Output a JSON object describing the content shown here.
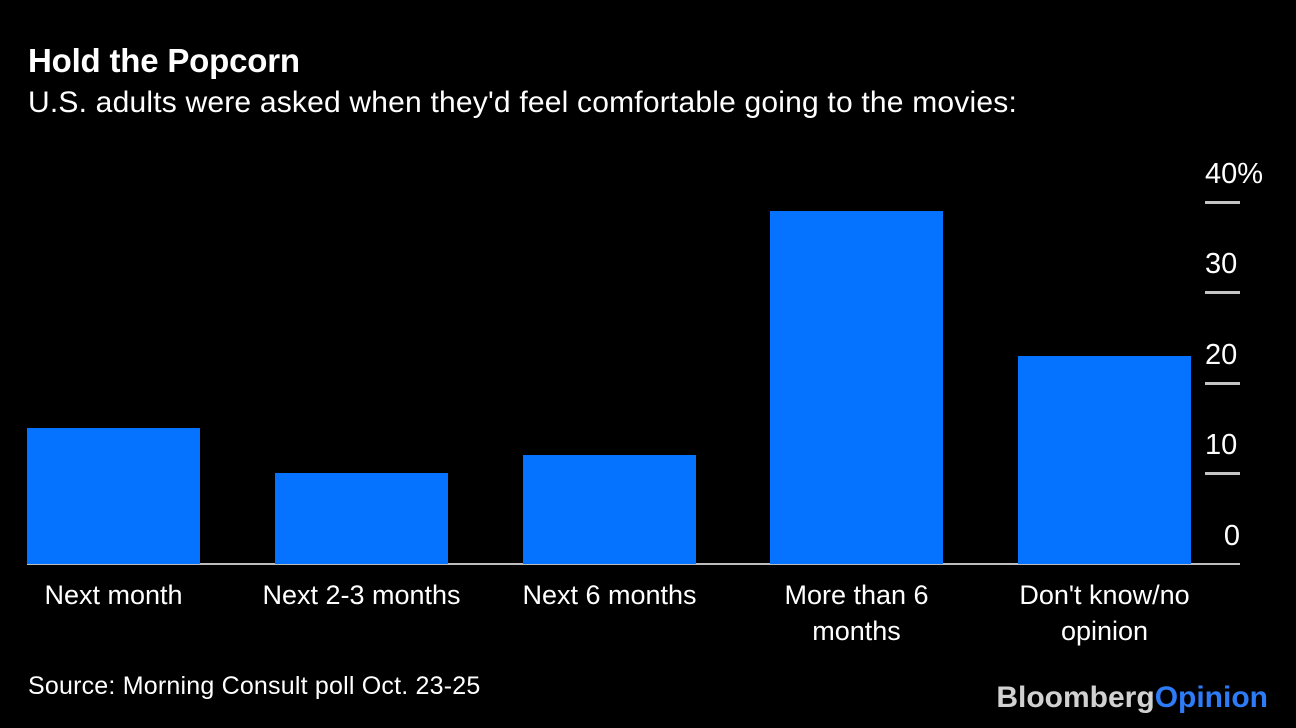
{
  "chart_data": {
    "type": "bar",
    "title": "Hold the Popcorn",
    "subtitle": "U.S. adults were asked when they'd feel comfortable going to the movies:",
    "categories": [
      "Next month",
      "Next 2-3 months",
      "Next 6 months",
      "More than 6\nmonths",
      "Don't know/no\nopinion"
    ],
    "values": [
      15,
      10,
      12,
      39,
      23
    ],
    "value_unit": "%",
    "ylim": [
      0,
      40
    ],
    "yticks": [
      0,
      10,
      20,
      30,
      40
    ],
    "ytick_labels": [
      "0",
      "10",
      "20",
      "30",
      "40%"
    ],
    "axis_position": "right",
    "grid": false,
    "legend": "none",
    "bar_color": "#0573ff",
    "axis_line_color": "#bdbdbd",
    "tick_color": "#c4c4c4",
    "text_color": "#ffffff",
    "background": "#000000"
  },
  "footer": {
    "source": "Source: Morning Consult poll Oct. 23-25",
    "logo_bloomberg": "Bloomberg",
    "logo_opinion": "Opinion",
    "logo_bloomberg_color": "#d1d1d1",
    "logo_opinion_color": "#2e7bf7"
  }
}
